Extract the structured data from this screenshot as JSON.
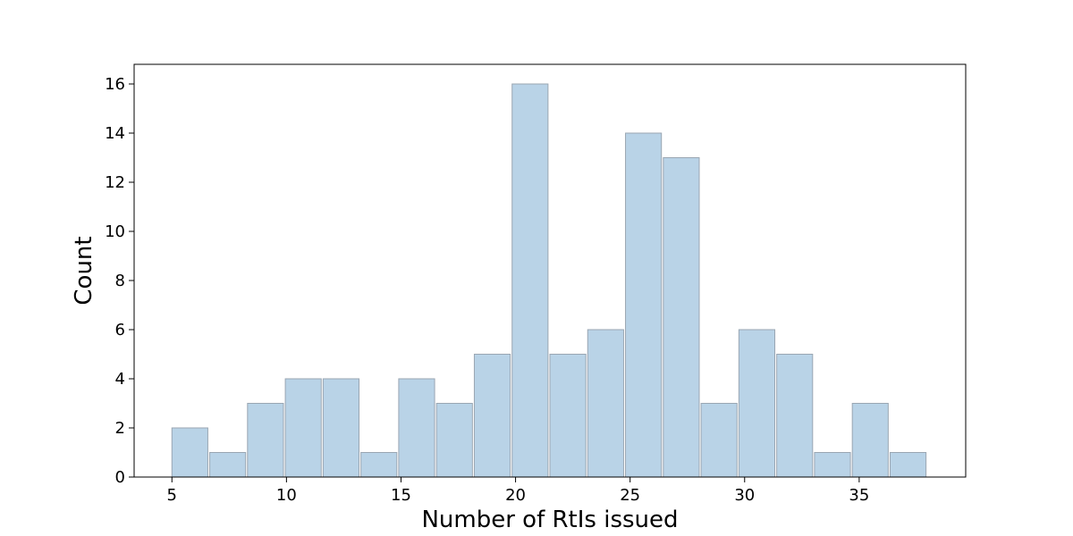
{
  "chart_data": {
    "type": "bar",
    "title": "",
    "xlabel": "Number of RtIs issued",
    "ylabel": "Count",
    "xlim": [
      3.35,
      39.65
    ],
    "ylim": [
      0,
      16.8
    ],
    "grid": false,
    "bin_edges": [
      5.0,
      6.65,
      8.3,
      9.95,
      11.6,
      13.25,
      14.9,
      16.55,
      18.2,
      19.85,
      21.5,
      23.15,
      24.8,
      26.45,
      28.1,
      29.75,
      31.4,
      33.05,
      34.7,
      36.35,
      38.0
    ],
    "values": [
      2,
      1,
      3,
      4,
      4,
      1,
      4,
      3,
      5,
      16,
      5,
      6,
      14,
      13,
      3,
      6,
      5,
      1,
      3,
      1
    ],
    "x_ticks": [
      5,
      10,
      15,
      20,
      25,
      30,
      35
    ],
    "y_ticks": [
      0,
      2,
      4,
      6,
      8,
      10,
      12,
      14,
      16
    ],
    "colors": {
      "bar_fill": "#b9d3e7",
      "bar_edge": "#9aa6b2",
      "axis": "#000000"
    }
  }
}
